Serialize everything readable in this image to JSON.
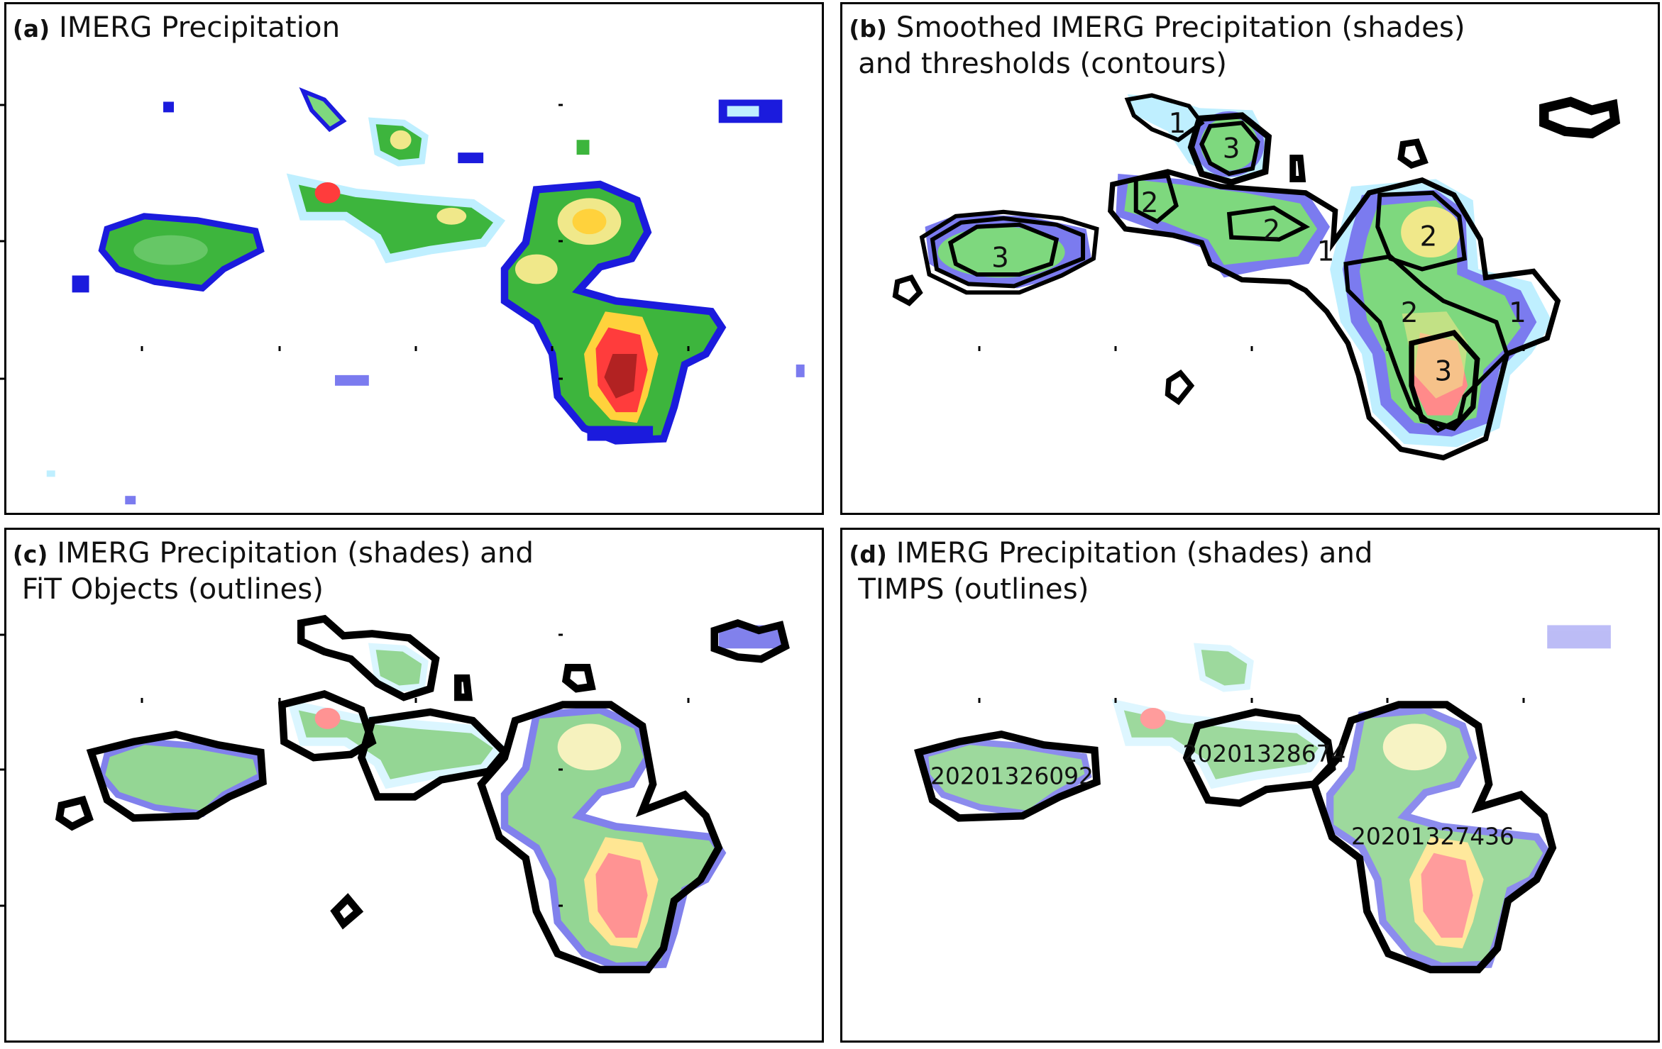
{
  "panels": [
    {
      "id": "a",
      "label": "(a)",
      "title_line1": "IMERG Precipitation",
      "title_line2": ""
    },
    {
      "id": "b",
      "label": "(b)",
      "title_line1": "Smoothed IMERG Precipitation (shades)",
      "title_line2": "and thresholds (contours)",
      "contour_labels": [
        "1",
        "3",
        "2",
        "3",
        "2",
        "1",
        "2",
        "2",
        "1",
        "3"
      ]
    },
    {
      "id": "c",
      "label": "(c)",
      "title_line1": "IMERG Precipitation (shades) and",
      "title_line2": "FiT Objects (outlines)"
    },
    {
      "id": "d",
      "label": "(d)",
      "title_line1": "IMERG Precipitation (shades) and",
      "title_line2": "TIMPS (outlines)",
      "timps_ids": [
        "20201326092",
        "20201328674",
        "20201327436"
      ]
    }
  ],
  "colors": {
    "outline": "#000000",
    "precip_scale": [
      "#bfefff",
      "#7b7bef",
      "#1b1bdd",
      "#3db53d",
      "#7ed87e",
      "#f0e88a",
      "#ffd23c",
      "#ff3c3c",
      "#b22222"
    ]
  }
}
